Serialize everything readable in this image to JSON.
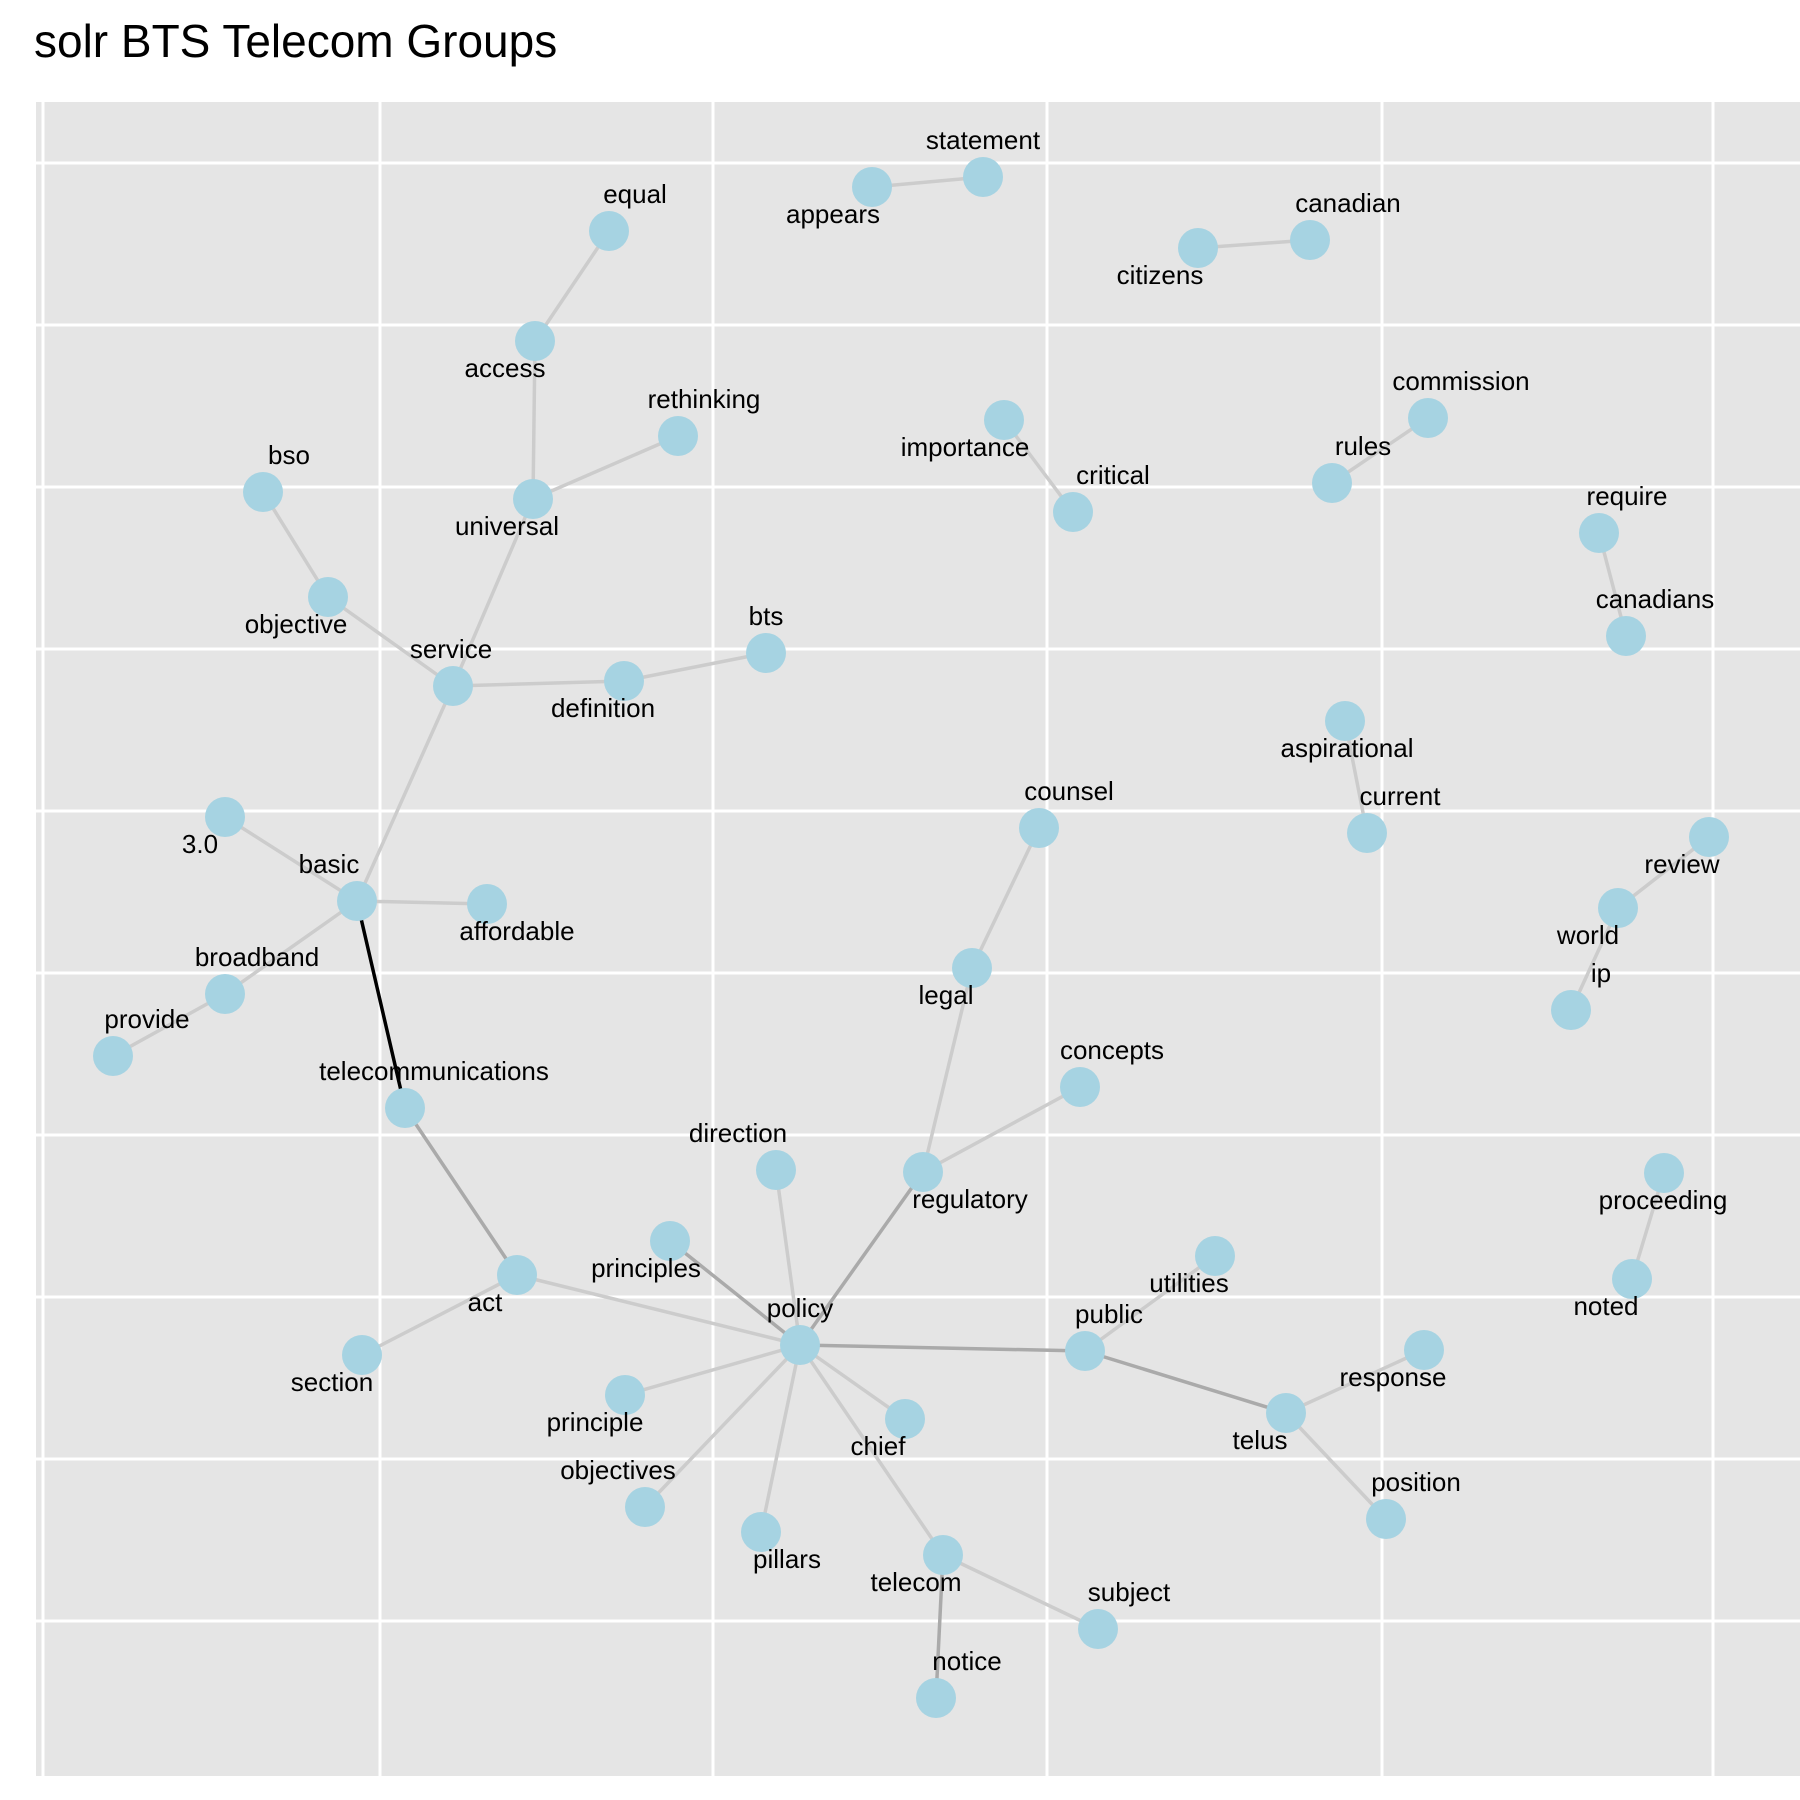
{
  "title": "solr BTS Telecom Groups",
  "colors": {
    "panel": "#e5e5e5",
    "grid": "#ffffff",
    "node": "#a6d3e2",
    "edge_light": "#cccccc",
    "edge_mid": "#aaaaaa",
    "edge_strong": "#000000"
  },
  "nodes": [
    {
      "id": "statement",
      "label": "statement"
    },
    {
      "id": "appears",
      "label": "appears"
    },
    {
      "id": "canadian",
      "label": "canadian"
    },
    {
      "id": "citizens",
      "label": "citizens"
    },
    {
      "id": "equal",
      "label": "equal"
    },
    {
      "id": "access",
      "label": "access"
    },
    {
      "id": "rethinking",
      "label": "rethinking"
    },
    {
      "id": "universal",
      "label": "universal"
    },
    {
      "id": "bso",
      "label": "bso"
    },
    {
      "id": "objective",
      "label": "objective"
    },
    {
      "id": "service",
      "label": "service"
    },
    {
      "id": "definition",
      "label": "definition"
    },
    {
      "id": "bts",
      "label": "bts"
    },
    {
      "id": "importance",
      "label": "importance"
    },
    {
      "id": "critical",
      "label": "critical"
    },
    {
      "id": "commission",
      "label": "commission"
    },
    {
      "id": "rules",
      "label": "rules"
    },
    {
      "id": "require",
      "label": "require"
    },
    {
      "id": "canadians",
      "label": "canadians"
    },
    {
      "id": "aspirational",
      "label": "aspirational"
    },
    {
      "id": "current",
      "label": "current"
    },
    {
      "id": "3.0",
      "label": "3.0"
    },
    {
      "id": "basic",
      "label": "basic"
    },
    {
      "id": "affordable",
      "label": "affordable"
    },
    {
      "id": "broadband",
      "label": "broadband"
    },
    {
      "id": "provide",
      "label": "provide"
    },
    {
      "id": "counsel",
      "label": "counsel"
    },
    {
      "id": "legal",
      "label": "legal"
    },
    {
      "id": "review",
      "label": "review"
    },
    {
      "id": "world",
      "label": "world"
    },
    {
      "id": "ip",
      "label": "ip"
    },
    {
      "id": "telecommunications",
      "label": "telecommunications"
    },
    {
      "id": "concepts",
      "label": "concepts"
    },
    {
      "id": "direction",
      "label": "direction"
    },
    {
      "id": "regulatory",
      "label": "regulatory"
    },
    {
      "id": "proceeding",
      "label": "proceeding"
    },
    {
      "id": "noted",
      "label": "noted"
    },
    {
      "id": "principles",
      "label": "principles"
    },
    {
      "id": "act",
      "label": "act"
    },
    {
      "id": "utilities",
      "label": "utilities"
    },
    {
      "id": "policy",
      "label": "policy"
    },
    {
      "id": "public",
      "label": "public"
    },
    {
      "id": "section",
      "label": "section"
    },
    {
      "id": "response",
      "label": "response"
    },
    {
      "id": "telus",
      "label": "telus"
    },
    {
      "id": "principle",
      "label": "principle"
    },
    {
      "id": "chief",
      "label": "chief"
    },
    {
      "id": "objectives",
      "label": "objectives"
    },
    {
      "id": "position",
      "label": "position"
    },
    {
      "id": "pillars",
      "label": "pillars"
    },
    {
      "id": "telecom",
      "label": "telecom"
    },
    {
      "id": "subject",
      "label": "subject"
    },
    {
      "id": "notice",
      "label": "notice"
    }
  ],
  "edges": [
    {
      "source": "appears",
      "target": "statement",
      "weight": "light"
    },
    {
      "source": "citizens",
      "target": "canadian",
      "weight": "light"
    },
    {
      "source": "access",
      "target": "equal",
      "weight": "light"
    },
    {
      "source": "universal",
      "target": "access",
      "weight": "light"
    },
    {
      "source": "universal",
      "target": "rethinking",
      "weight": "light"
    },
    {
      "source": "service",
      "target": "universal",
      "weight": "light"
    },
    {
      "source": "bso",
      "target": "objective",
      "weight": "light"
    },
    {
      "source": "objective",
      "target": "service",
      "weight": "light"
    },
    {
      "source": "service",
      "target": "definition",
      "weight": "light"
    },
    {
      "source": "definition",
      "target": "bts",
      "weight": "light"
    },
    {
      "source": "basic",
      "target": "service",
      "weight": "light"
    },
    {
      "source": "importance",
      "target": "critical",
      "weight": "light"
    },
    {
      "source": "rules",
      "target": "commission",
      "weight": "light"
    },
    {
      "source": "require",
      "target": "canadians",
      "weight": "light"
    },
    {
      "source": "aspirational",
      "target": "current",
      "weight": "light"
    },
    {
      "source": "3.0",
      "target": "basic",
      "weight": "light"
    },
    {
      "source": "basic",
      "target": "affordable",
      "weight": "light"
    },
    {
      "source": "basic",
      "target": "broadband",
      "weight": "light"
    },
    {
      "source": "broadband",
      "target": "provide",
      "weight": "light"
    },
    {
      "source": "basic",
      "target": "telecommunications",
      "weight": "strong"
    },
    {
      "source": "counsel",
      "target": "legal",
      "weight": "light"
    },
    {
      "source": "legal",
      "target": "regulatory",
      "weight": "light"
    },
    {
      "source": "review",
      "target": "world",
      "weight": "light"
    },
    {
      "source": "world",
      "target": "ip",
      "weight": "light"
    },
    {
      "source": "telecommunications",
      "target": "act",
      "weight": "mid"
    },
    {
      "source": "regulatory",
      "target": "concepts",
      "weight": "light"
    },
    {
      "source": "regulatory",
      "target": "policy",
      "weight": "mid"
    },
    {
      "source": "direction",
      "target": "policy",
      "weight": "light"
    },
    {
      "source": "proceeding",
      "target": "noted",
      "weight": "light"
    },
    {
      "source": "principles",
      "target": "policy",
      "weight": "mid"
    },
    {
      "source": "act",
      "target": "policy",
      "weight": "light"
    },
    {
      "source": "act",
      "target": "section",
      "weight": "light"
    },
    {
      "source": "utilities",
      "target": "public",
      "weight": "light"
    },
    {
      "source": "policy",
      "target": "public",
      "weight": "mid"
    },
    {
      "source": "public",
      "target": "telus",
      "weight": "mid"
    },
    {
      "source": "telus",
      "target": "response",
      "weight": "light"
    },
    {
      "source": "telus",
      "target": "position",
      "weight": "light"
    },
    {
      "source": "policy",
      "target": "principle",
      "weight": "light"
    },
    {
      "source": "policy",
      "target": "chief",
      "weight": "light"
    },
    {
      "source": "policy",
      "target": "objectives",
      "weight": "light"
    },
    {
      "source": "policy",
      "target": "pillars",
      "weight": "light"
    },
    {
      "source": "policy",
      "target": "telecom",
      "weight": "light"
    },
    {
      "source": "telecom",
      "target": "subject",
      "weight": "light"
    },
    {
      "source": "telecom",
      "target": "notice",
      "weight": "mid"
    }
  ]
}
